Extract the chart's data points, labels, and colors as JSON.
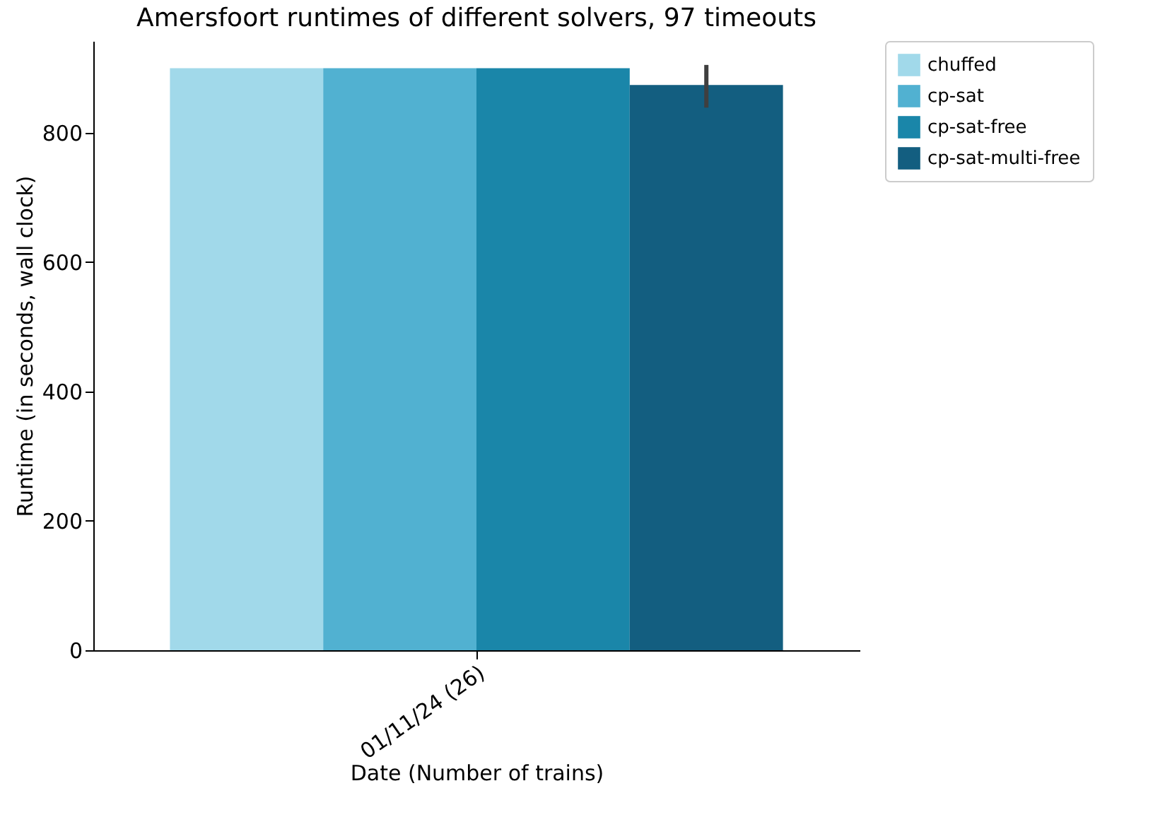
{
  "chart_data": {
    "type": "bar",
    "title": "Amersfoort runtimes of different solvers, 97 timeouts",
    "xlabel": "Date (Number of trains)",
    "ylabel": "Runtime (in seconds, wall clock)",
    "categories": [
      "01/11/24 (26)"
    ],
    "series": [
      {
        "name": "chuffed",
        "color": "#a1d9ea",
        "values": [
          900
        ]
      },
      {
        "name": "cp-sat",
        "color": "#51b1d1",
        "values": [
          900
        ]
      },
      {
        "name": "cp-sat-free",
        "color": "#1a86a9",
        "values": [
          900
        ]
      },
      {
        "name": "cp-sat-multi-free",
        "color": "#135e80",
        "values": [
          874
        ],
        "errors": [
          [
            839,
            905
          ]
        ]
      }
    ],
    "ylim": [
      0,
      942
    ],
    "yticks": [
      0,
      200,
      400,
      600,
      800
    ],
    "grid": false,
    "legend": "right"
  }
}
